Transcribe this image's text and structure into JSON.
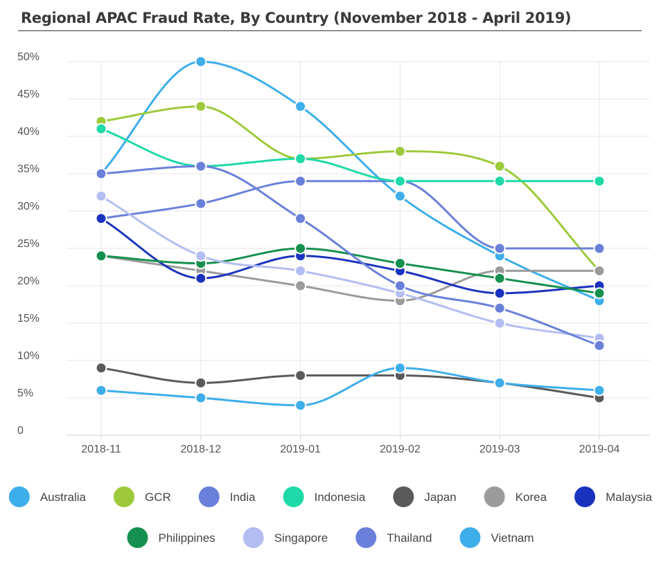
{
  "chart_data": {
    "type": "line",
    "title": "Regional APAC Fraud Rate, By Country (November 2018 - April 2019)",
    "xlabel": "",
    "ylabel": "",
    "categories": [
      "2018-11",
      "2018-12",
      "2019-01",
      "2019-02",
      "2019-03",
      "2019-04"
    ],
    "y_ticks": [
      "0",
      "5%",
      "10%",
      "15%",
      "20%",
      "25%",
      "30%",
      "35%",
      "40%",
      "45%",
      "50%"
    ],
    "ylim": [
      0,
      50
    ],
    "grid": true,
    "legend_position": "bottom",
    "series": [
      {
        "name": "Australia",
        "color": "#3daeea",
        "values": [
          35,
          50,
          44,
          32,
          24,
          18
        ]
      },
      {
        "name": "GCR",
        "color": "#9dc93a",
        "values": [
          42,
          44,
          37,
          38,
          36,
          22
        ]
      },
      {
        "name": "India",
        "color": "#6a80da",
        "values": [
          29,
          31,
          34,
          34,
          25,
          25
        ]
      },
      {
        "name": "Indonesia",
        "color": "#1ed9a8",
        "values": [
          41,
          36,
          37,
          34,
          34,
          34
        ]
      },
      {
        "name": "Japan",
        "color": "#5a5a5a",
        "values": [
          9,
          7,
          8,
          8,
          7,
          5
        ]
      },
      {
        "name": "Korea",
        "color": "#9b9b9b",
        "values": [
          24,
          22,
          20,
          18,
          22,
          22
        ]
      },
      {
        "name": "Malaysia",
        "color": "#1a33be",
        "values": [
          29,
          21,
          24,
          22,
          19,
          20
        ]
      },
      {
        "name": "Philippines",
        "color": "#15904e",
        "values": [
          24,
          23,
          25,
          23,
          21,
          19
        ]
      },
      {
        "name": "Singapore",
        "color": "#b3bdf2",
        "values": [
          32,
          24,
          22,
          19,
          15,
          13
        ]
      },
      {
        "name": "Thailand",
        "color": "#6a80da",
        "values": [
          35,
          36,
          29,
          20,
          17,
          12
        ]
      },
      {
        "name": "Vietnam",
        "color": "#3daeea",
        "values": [
          6,
          5,
          4,
          9,
          7,
          6
        ]
      }
    ]
  }
}
